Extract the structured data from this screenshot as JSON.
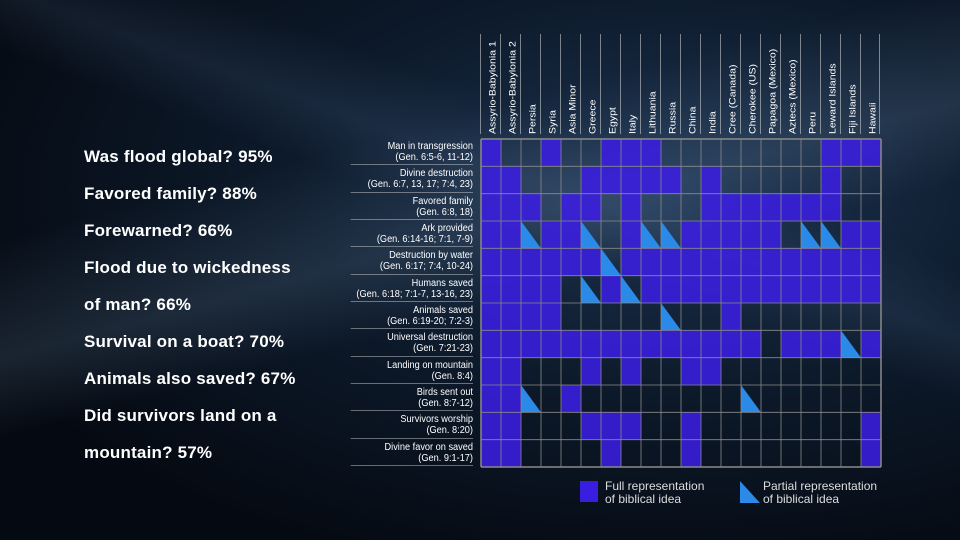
{
  "stats": [
    "Was flood global? 95%",
    "Favored family? 88%",
    "Forewarned? 66%",
    "Flood due to wickedness",
    "of man? 66%",
    "Survival on a boat? 70%",
    "Animals also saved? 67%",
    "Did survivors land on a",
    "mountain? 57%"
  ],
  "colors": {
    "full": "#3a1ee0",
    "partial": "#2b8ae8",
    "grid": "#8a8a8a"
  },
  "chart_data": {
    "type": "heatmap",
    "columns": [
      "Assyrio-Babylonia 1",
      "Assyrio-Babylonia 2",
      "Persia",
      "Syria",
      "Asia Minor",
      "Greece",
      "Egypt",
      "Italy",
      "Lithuania",
      "Russia",
      "China",
      "India",
      "Cree (Canada)",
      "Cherokee (US)",
      "Papagoa (Mexico)",
      "Aztecs (Mexico)",
      "Peru",
      "Leward Islands",
      "Fiji Islands",
      "Hawaii"
    ],
    "rows": [
      {
        "label": "Man in transgression",
        "ref": "(Gen. 6:5-6, 11-12)",
        "cells": "F..F..FFF........FFF"
      },
      {
        "label": "Divine destruction",
        "ref": "(Gen. 6:7, 13, 17; 7:4, 23)",
        "cells": "FF...FFFFF.F.....F.."
      },
      {
        "label": "Favored family",
        "ref": "(Gen. 6:8, 18)",
        "cells": "FFF.FF.F...FFFFFFF.."
      },
      {
        "label": "Ark provided",
        "ref": "(Gen. 6:14-16; 7:1, 7-9)",
        "cells": "FFPFFP.FPPFFFFF.PPFF"
      },
      {
        "label": "Destruction by water",
        "ref": "(Gen. 6:17; 7:4, 10-24)",
        "cells": "FFFFFFPFFFFFFFFFFFFF"
      },
      {
        "label": "Humans saved",
        "ref": "(Gen. 6:18; 7:1-7, 13-16, 23)",
        "cells": "FFFF.PFPFFFFFFFFFFFF"
      },
      {
        "label": "Animals saved",
        "ref": "(Gen. 6:19-20; 7:2-3)",
        "cells": "FFFF.....P..F......."
      },
      {
        "label": "Universal destruction",
        "ref": "(Gen. 7:21-23)",
        "cells": "FFFFFFFFFFFFFF.FFFPF"
      },
      {
        "label": "Landing on mountain",
        "ref": "(Gen. 8:4)",
        "cells": "FF...F.F..FF........"
      },
      {
        "label": "Birds sent out",
        "ref": "(Gen. 8:7-12)",
        "cells": "FFP.F........P......"
      },
      {
        "label": "Survivors worship",
        "ref": "(Gen. 8:20)",
        "cells": "FF...FFF..F........F"
      },
      {
        "label": "Divine favor on saved",
        "ref": "(Gen. 9:1-17)",
        "cells": "FF....F...F........F"
      }
    ],
    "legend": {
      "full": "Full representation\nof biblical idea",
      "partial": "Partial representation\nof biblical idea",
      "placement": "bottom"
    }
  },
  "legend": {
    "full_1": "Full representation",
    "full_2": "of biblical idea",
    "partial_1": "Partial representation",
    "partial_2": "of biblical idea"
  }
}
